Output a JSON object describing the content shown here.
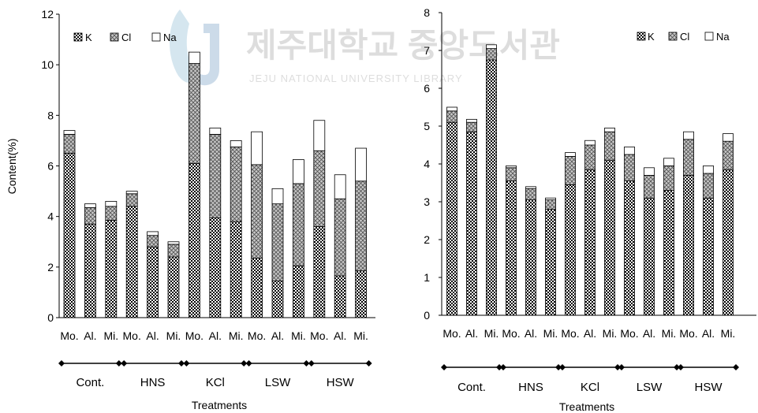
{
  "watermark": {
    "korean": "제주대학교 중앙도서관",
    "english": "JEJU NATIONAL UNIVERSITY LIBRARY"
  },
  "legend": {
    "k_label": "K",
    "cl_label": "Cl",
    "na_label": "Na"
  },
  "colors": {
    "stroke": "#000000",
    "background": "#ffffff",
    "k_pattern": "dense-checker",
    "cl_pattern": "crosshatch-gray",
    "na_pattern": "white"
  },
  "chart_data": [
    {
      "type": "bar",
      "stacked": true,
      "ylabel": "Content(%)",
      "xlabel": "Treatments",
      "ylim": [
        0,
        12
      ],
      "yticks": [
        0,
        2,
        4,
        6,
        8,
        10,
        12
      ],
      "legend_position": "top-left",
      "grid": false,
      "categories": [
        "Mo.",
        "Al.",
        "Mi.",
        "Mo.",
        "Al.",
        "Mi.",
        "Mo.",
        "Al.",
        "Mi.",
        "Mo.",
        "Al.",
        "Mi.",
        "Mo.",
        "Al.",
        "Mi."
      ],
      "groups": [
        "Cont.",
        "HNS",
        "KCl",
        "LSW",
        "HSW"
      ],
      "series": [
        {
          "name": "K",
          "values": [
            6.5,
            3.7,
            3.85,
            4.4,
            2.8,
            2.4,
            6.1,
            3.95,
            3.8,
            2.35,
            1.45,
            2.05,
            3.6,
            1.65,
            1.85
          ]
        },
        {
          "name": "Cl",
          "values": [
            0.75,
            0.65,
            0.55,
            0.5,
            0.45,
            0.5,
            3.95,
            3.3,
            2.95,
            3.7,
            3.05,
            3.25,
            3.0,
            3.05,
            3.55
          ]
        },
        {
          "name": "Na",
          "values": [
            0.15,
            0.15,
            0.2,
            0.1,
            0.15,
            0.1,
            0.45,
            0.25,
            0.25,
            1.3,
            0.6,
            0.95,
            1.2,
            0.95,
            1.3
          ]
        }
      ]
    },
    {
      "type": "bar",
      "stacked": true,
      "ylabel": "",
      "xlabel": "Treatments",
      "ylim": [
        0,
        8
      ],
      "yticks": [
        0,
        1,
        2,
        3,
        4,
        5,
        6,
        7,
        8
      ],
      "legend_position": "top-right",
      "grid": false,
      "categories": [
        "Mo.",
        "Al.",
        "Mi.",
        "Mo.",
        "Al.",
        "Mi.",
        "Mo.",
        "Al.",
        "Mi.",
        "Mo.",
        "Al.",
        "Mi.",
        "Mo.",
        "Al.",
        "Mi."
      ],
      "groups": [
        "Cont.",
        "HNS",
        "KCl",
        "LSW",
        "HSW"
      ],
      "series": [
        {
          "name": "K",
          "values": [
            5.1,
            4.85,
            6.75,
            3.55,
            3.05,
            2.8,
            3.45,
            3.85,
            4.1,
            3.55,
            3.1,
            3.3,
            3.7,
            3.1,
            3.85
          ]
        },
        {
          "name": "Cl",
          "values": [
            0.3,
            0.25,
            0.3,
            0.35,
            0.3,
            0.25,
            0.75,
            0.65,
            0.75,
            0.7,
            0.6,
            0.65,
            0.95,
            0.65,
            0.75
          ]
        },
        {
          "name": "Na",
          "values": [
            0.1,
            0.08,
            0.1,
            0.05,
            0.05,
            0.05,
            0.1,
            0.12,
            0.1,
            0.2,
            0.2,
            0.2,
            0.2,
            0.2,
            0.2
          ]
        }
      ]
    }
  ]
}
